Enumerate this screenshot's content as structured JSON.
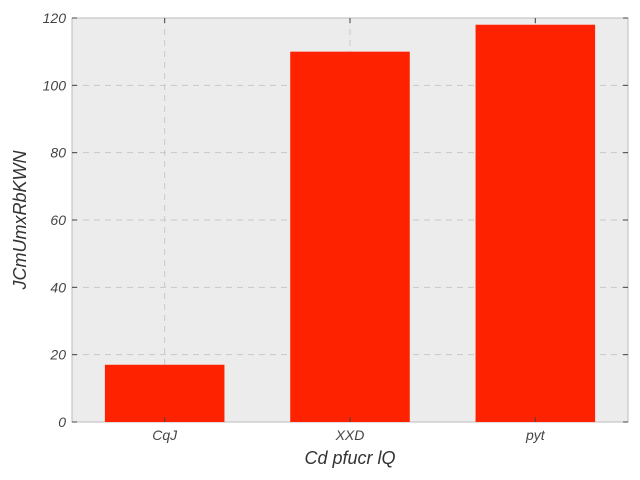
{
  "chart_data": {
    "type": "bar",
    "categories": [
      "CqJ",
      "XXD",
      "pyt"
    ],
    "values": [
      17,
      110,
      118
    ],
    "xlabel": "Cd pfucr lQ",
    "ylabel": "JCmUmxRbKWN",
    "ylim": [
      0,
      120
    ],
    "yticks": [
      0,
      20,
      40,
      60,
      80,
      100,
      120
    ],
    "grid": true,
    "bar_color": "#ff2200",
    "background_color": "#ececec"
  }
}
